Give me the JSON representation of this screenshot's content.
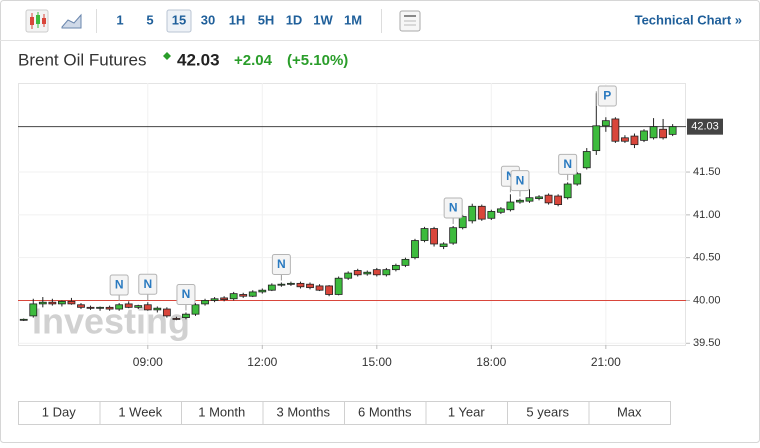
{
  "toolbar": {
    "intervals": [
      "1",
      "5",
      "15",
      "30",
      "1H",
      "5H",
      "1D",
      "1W",
      "1M"
    ],
    "selected_index": 2,
    "link": "Technical Chart »"
  },
  "header": {
    "title": "Brent Oil Futures",
    "price": "42.03",
    "change": "+2.04",
    "change_pct": "(+5.10%)"
  },
  "chart_data": {
    "type": "candlestick",
    "watermark": "Investing",
    "x": [
      5.75,
      6,
      6.25,
      6.5,
      6.75,
      7,
      7.25,
      7.5,
      7.75,
      8,
      8.25,
      8.5,
      8.75,
      9,
      9.25,
      9.5,
      9.75,
      10,
      10.25,
      10.5,
      10.75,
      11,
      11.25,
      11.5,
      11.75,
      12,
      12.25,
      12.5,
      12.75,
      13,
      13.25,
      13.5,
      13.75,
      14,
      14.25,
      14.5,
      14.75,
      15,
      15.25,
      15.5,
      15.75,
      16,
      16.25,
      16.5,
      16.75,
      17,
      17.25,
      17.5,
      17.75,
      18,
      18.25,
      18.5,
      18.75,
      19,
      19.25,
      19.5,
      19.75,
      20,
      20.25,
      20.5,
      20.75,
      21,
      21.25,
      21.5,
      21.75,
      22,
      22.25,
      22.5,
      22.75
    ],
    "open": [
      39.77,
      39.82,
      39.96,
      39.98,
      39.96,
      39.99,
      39.95,
      39.92,
      39.91,
      39.92,
      39.9,
      39.96,
      39.92,
      39.95,
      39.89,
      39.9,
      39.79,
      39.8,
      39.84,
      39.96,
      40.0,
      40.03,
      40.02,
      40.07,
      40.05,
      40.1,
      40.12,
      40.18,
      40.19,
      40.2,
      40.19,
      40.17,
      40.17,
      40.07,
      40.26,
      40.35,
      40.31,
      40.36,
      40.3,
      40.36,
      40.41,
      40.5,
      40.7,
      40.84,
      40.63,
      40.67,
      40.85,
      40.93,
      41.1,
      40.96,
      41.03,
      41.06,
      41.15,
      41.16,
      41.19,
      41.23,
      41.22,
      41.2,
      41.36,
      41.55,
      41.75,
      42.04,
      42.12,
      41.9,
      41.92,
      41.87,
      41.9,
      42.0,
      41.94
    ],
    "high": [
      39.79,
      40.02,
      40.04,
      40.02,
      40.0,
      40.03,
      39.97,
      39.94,
      39.93,
      39.94,
      39.97,
      39.99,
      39.95,
      39.98,
      39.93,
      39.92,
      39.81,
      39.86,
      39.97,
      40.02,
      40.04,
      40.05,
      40.1,
      40.09,
      40.12,
      40.14,
      40.2,
      40.21,
      40.22,
      40.22,
      40.21,
      40.19,
      40.18,
      40.28,
      40.34,
      40.37,
      40.35,
      40.38,
      40.38,
      40.43,
      40.5,
      40.72,
      40.86,
      40.86,
      40.68,
      40.87,
      41.0,
      41.13,
      41.12,
      41.06,
      41.09,
      41.24,
      41.19,
      41.3,
      41.23,
      41.25,
      41.24,
      41.38,
      41.5,
      41.78,
      42.42,
      42.14,
      42.14,
      41.93,
      41.95,
      42.0,
      42.13,
      42.12,
      42.06
    ],
    "low": [
      39.76,
      39.8,
      39.92,
      39.94,
      39.93,
      39.95,
      39.9,
      39.89,
      39.88,
      39.88,
      39.88,
      39.91,
      39.9,
      39.88,
      39.86,
      39.8,
      39.77,
      39.78,
      39.82,
      39.94,
      39.98,
      39.99,
      40.0,
      40.03,
      40.04,
      40.08,
      40.11,
      40.16,
      40.17,
      40.14,
      40.13,
      40.11,
      40.05,
      40.06,
      40.24,
      40.28,
      40.29,
      40.28,
      40.28,
      40.34,
      40.39,
      40.48,
      40.68,
      40.63,
      40.6,
      40.65,
      40.83,
      40.9,
      40.93,
      40.94,
      41.01,
      41.04,
      41.13,
      41.14,
      41.17,
      41.12,
      41.1,
      41.18,
      41.34,
      41.53,
      41.7,
      41.97,
      41.84,
      41.84,
      41.78,
      41.85,
      41.88,
      41.88,
      41.92
    ],
    "close": [
      39.78,
      39.96,
      39.98,
      39.96,
      39.99,
      39.96,
      39.92,
      39.91,
      39.92,
      39.9,
      39.95,
      39.92,
      39.94,
      39.89,
      39.91,
      39.82,
      39.78,
      39.84,
      39.95,
      40.0,
      40.02,
      40.01,
      40.08,
      40.05,
      40.1,
      40.12,
      40.18,
      40.19,
      40.2,
      40.16,
      40.15,
      40.12,
      40.07,
      40.26,
      40.32,
      40.3,
      40.33,
      40.3,
      40.36,
      40.41,
      40.48,
      40.7,
      40.84,
      40.66,
      40.66,
      40.85,
      40.98,
      41.1,
      40.95,
      41.04,
      41.07,
      41.15,
      41.17,
      41.2,
      41.21,
      41.14,
      41.12,
      41.36,
      41.48,
      41.74,
      42.04,
      42.1,
      41.86,
      41.86,
      41.82,
      41.98,
      42.03,
      41.9,
      42.03
    ],
    "up_color": "#3dbb3d",
    "down_color": "#d9463b",
    "xlim": [
      5.6,
      23.1
    ],
    "xticks": [
      {
        "value": 9,
        "label": "09:00"
      },
      {
        "value": 12,
        "label": "12:00"
      },
      {
        "value": 15,
        "label": "15:00"
      },
      {
        "value": 18,
        "label": "18:00"
      },
      {
        "value": 21,
        "label": "21:00"
      }
    ],
    "ylim": [
      39.48,
      42.54
    ],
    "yticks": [
      {
        "value": 39.5,
        "label": "39.50"
      },
      {
        "value": 40,
        "label": "40.00"
      },
      {
        "value": 40.5,
        "label": "40.50"
      },
      {
        "value": 41,
        "label": "41.00"
      },
      {
        "value": 41.5,
        "label": "41.50"
      }
    ],
    "grid": true,
    "hlines": [
      {
        "value": 42.03,
        "label": "42.03",
        "color": "#444444"
      },
      {
        "value": 40,
        "color": "#d9463b"
      }
    ],
    "annotations": [
      {
        "x": 8.25,
        "label": "N"
      },
      {
        "x": 9,
        "label": "N"
      },
      {
        "x": 10,
        "label": "N"
      },
      {
        "x": 12.5,
        "label": "N"
      },
      {
        "x": 17,
        "label": "N"
      },
      {
        "x": 18.5,
        "label": "N"
      },
      {
        "x": 18.75,
        "label": "N"
      },
      {
        "x": 20,
        "label": "N"
      },
      {
        "x": 20.75,
        "label": "P"
      }
    ]
  },
  "ranges": [
    "1 Day",
    "1 Week",
    "1 Month",
    "3 Months",
    "6 Months",
    "1 Year",
    "5 years",
    "Max"
  ]
}
